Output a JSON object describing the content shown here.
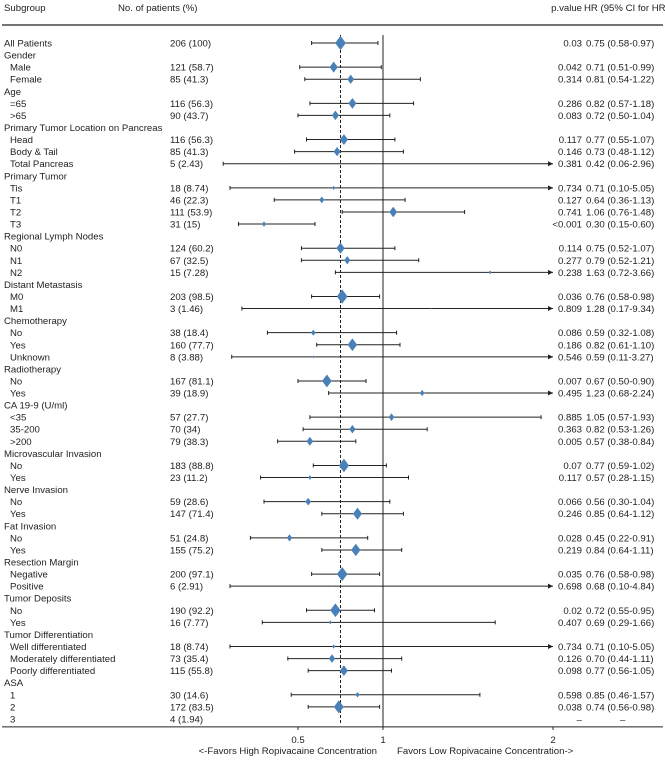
{
  "chart_data": {
    "type": "forest",
    "headers": {
      "subgroup": "Subgroup",
      "patients": "No. of patients (%)",
      "pvalue": "p.value",
      "hr": "HR (95% CI for HR)"
    },
    "x_axis": {
      "ticks": [
        0.5,
        1,
        2
      ],
      "tick_labels": [
        "0.5",
        "1",
        "2"
      ],
      "range": [
        0,
        2
      ],
      "reference_line": 1,
      "overall_line": 0.75,
      "left_label": "<-Favors High Ropivacaine Concentration",
      "right_label": "Favors Low Ropivacaine Concentration->"
    },
    "colors": {
      "marker": "#4a80b8",
      "line": "#222222"
    },
    "rows": [
      {
        "label": "All Patients",
        "group": true,
        "n": "206 (100)",
        "p": "0.03",
        "hr_text": "0.75 (0.58-0.97)",
        "hr": 0.75,
        "lo": 0.58,
        "hi": 0.97,
        "count": 206
      },
      {
        "label": "Gender",
        "group": true
      },
      {
        "label": "Male",
        "n": "121 (58.7)",
        "p": "0.042",
        "hr_text": "0.71 (0.51-0.99)",
        "hr": 0.71,
        "lo": 0.51,
        "hi": 0.99,
        "count": 121
      },
      {
        "label": "Female",
        "n": "85 (41.3)",
        "p": "0.314",
        "hr_text": "0.81 (0.54-1.22)",
        "hr": 0.81,
        "lo": 0.54,
        "hi": 1.22,
        "count": 85
      },
      {
        "label": "Age",
        "group": true
      },
      {
        "label": "=65",
        "n": "116 (56.3)",
        "p": "0.286",
        "hr_text": "0.82 (0.57-1.18)",
        "hr": 0.82,
        "lo": 0.57,
        "hi": 1.18,
        "count": 116
      },
      {
        "label": ">65",
        "n": "90 (43.7)",
        "p": "0.083",
        "hr_text": "0.72 (0.50-1.04)",
        "hr": 0.72,
        "lo": 0.5,
        "hi": 1.04,
        "count": 90
      },
      {
        "label": "Primary Tumor Location on Pancreas",
        "group": true
      },
      {
        "label": "Head",
        "n": "116 (56.3)",
        "p": "0.117",
        "hr_text": "0.77 (0.55-1.07)",
        "hr": 0.77,
        "lo": 0.55,
        "hi": 1.07,
        "count": 116
      },
      {
        "label": "Body & Tail",
        "n": "85 (41.3)",
        "p": "0.146",
        "hr_text": "0.73 (0.48-1.12)",
        "hr": 0.73,
        "lo": 0.48,
        "hi": 1.12,
        "count": 85
      },
      {
        "label": "Total Pancreas",
        "n": "5 (2.43)",
        "p": "0.381",
        "hr_text": "0.42 (0.06-2.96)",
        "hr": 0.42,
        "lo": 0.06,
        "hi": 2.96,
        "count": 5
      },
      {
        "label": "Primary Tumor",
        "group": true
      },
      {
        "label": "Tis",
        "n": "18 (8.74)",
        "p": "0.734",
        "hr_text": "0.71 (0.10-5.05)",
        "hr": 0.71,
        "lo": 0.1,
        "hi": 5.05,
        "count": 18
      },
      {
        "label": "T1",
        "n": "46 (22.3)",
        "p": "0.127",
        "hr_text": "0.64 (0.36-1.13)",
        "hr": 0.64,
        "lo": 0.36,
        "hi": 1.13,
        "count": 46
      },
      {
        "label": "T2",
        "n": "111 (53.9)",
        "p": "0.741",
        "hr_text": "1.06 (0.76-1.48)",
        "hr": 1.06,
        "lo": 0.76,
        "hi": 1.48,
        "count": 111
      },
      {
        "label": "T3",
        "n": "31 (15)",
        "p": "<0.001",
        "hr_text": "0.30 (0.15-0.60)",
        "hr": 0.3,
        "lo": 0.15,
        "hi": 0.6,
        "count": 31
      },
      {
        "label": "Regional Lymph Nodes",
        "group": true
      },
      {
        "label": "N0",
        "n": "124 (60.2)",
        "p": "0.114",
        "hr_text": "0.75 (0.52-1.07)",
        "hr": 0.75,
        "lo": 0.52,
        "hi": 1.07,
        "count": 124
      },
      {
        "label": "N1",
        "n": "67 (32.5)",
        "p": "0.277",
        "hr_text": "0.79 (0.52-1.21)",
        "hr": 0.79,
        "lo": 0.52,
        "hi": 1.21,
        "count": 67
      },
      {
        "label": "N2",
        "n": "15 (7.28)",
        "p": "0.238",
        "hr_text": "1.63 (0.72-3.66)",
        "hr": 1.63,
        "lo": 0.72,
        "hi": 3.66,
        "count": 15
      },
      {
        "label": "Distant Metastasis",
        "group": true
      },
      {
        "label": "M0",
        "n": "203 (98.5)",
        "p": "0.036",
        "hr_text": "0.76 (0.58-0.98)",
        "hr": 0.76,
        "lo": 0.58,
        "hi": 0.98,
        "count": 203
      },
      {
        "label": "M1",
        "n": "3 (1.46)",
        "p": "0.809",
        "hr_text": "1.28 (0.17-9.34)",
        "hr": 1.28,
        "lo": 0.17,
        "hi": 9.34,
        "count": 3
      },
      {
        "label": "Chemotherapy",
        "group": true
      },
      {
        "label": "No",
        "n": "38 (18.4)",
        "p": "0.086",
        "hr_text": "0.59 (0.32-1.08)",
        "hr": 0.59,
        "lo": 0.32,
        "hi": 1.08,
        "count": 38
      },
      {
        "label": "Yes",
        "n": "160 (77.7)",
        "p": "0.186",
        "hr_text": "0.82 (0.61-1.10)",
        "hr": 0.82,
        "lo": 0.61,
        "hi": 1.1,
        "count": 160
      },
      {
        "label": "Unknown",
        "n": "8 (3.88)",
        "p": "0.546",
        "hr_text": "0.59 (0.11-3.27)",
        "hr": 0.59,
        "lo": 0.11,
        "hi": 3.27,
        "count": 8
      },
      {
        "label": "Radiotherapy",
        "group": true
      },
      {
        "label": "No",
        "n": "167 (81.1)",
        "p": "0.007",
        "hr_text": "0.67 (0.50-0.90)",
        "hr": 0.67,
        "lo": 0.5,
        "hi": 0.9,
        "count": 167
      },
      {
        "label": "Yes",
        "n": "39 (18.9)",
        "p": "0.495",
        "hr_text": "1.23 (0.68-2.24)",
        "hr": 1.23,
        "lo": 0.68,
        "hi": 2.24,
        "count": 39
      },
      {
        "label": "CA 19-9 (U/ml)",
        "group": true
      },
      {
        "label": "<35",
        "n": "57 (27.7)",
        "p": "0.885",
        "hr_text": "1.05 (0.57-1.93)",
        "hr": 1.05,
        "lo": 0.57,
        "hi": 1.93,
        "count": 57
      },
      {
        "label": "35-200",
        "n": "70 (34)",
        "p": "0.363",
        "hr_text": "0.82 (0.53-1.26)",
        "hr": 0.82,
        "lo": 0.53,
        "hi": 1.26,
        "count": 70
      },
      {
        "label": ">200",
        "n": "79 (38.3)",
        "p": "0.005",
        "hr_text": "0.57 (0.38-0.84)",
        "hr": 0.57,
        "lo": 0.38,
        "hi": 0.84,
        "count": 79
      },
      {
        "label": "Microvascular Invasion",
        "group": true
      },
      {
        "label": "No",
        "n": "183 (88.8)",
        "p": "0.07",
        "hr_text": "0.77 (0.59-1.02)",
        "hr": 0.77,
        "lo": 0.59,
        "hi": 1.02,
        "count": 183
      },
      {
        "label": "Yes",
        "n": "23 (11.2)",
        "p": "0.117",
        "hr_text": "0.57 (0.28-1.15)",
        "hr": 0.57,
        "lo": 0.28,
        "hi": 1.15,
        "count": 23
      },
      {
        "label": "Nerve Invasion",
        "group": true
      },
      {
        "label": "No",
        "n": "59 (28.6)",
        "p": "0.066",
        "hr_text": "0.56 (0.30-1.04)",
        "hr": 0.56,
        "lo": 0.3,
        "hi": 1.04,
        "count": 59
      },
      {
        "label": "Yes",
        "n": "147 (71.4)",
        "p": "0.246",
        "hr_text": "0.85 (0.64-1.12)",
        "hr": 0.85,
        "lo": 0.64,
        "hi": 1.12,
        "count": 147
      },
      {
        "label": "Fat Invasion",
        "group": true
      },
      {
        "label": "No",
        "n": "51 (24.8)",
        "p": "0.028",
        "hr_text": "0.45 (0.22-0.91)",
        "hr": 0.45,
        "lo": 0.22,
        "hi": 0.91,
        "count": 51
      },
      {
        "label": "Yes",
        "n": "155 (75.2)",
        "p": "0.219",
        "hr_text": "0.84 (0.64-1.11)",
        "hr": 0.84,
        "lo": 0.64,
        "hi": 1.11,
        "count": 155
      },
      {
        "label": "Resection Margin",
        "group": true
      },
      {
        "label": "Negative",
        "n": "200 (97.1)",
        "p": "0.035",
        "hr_text": "0.76 (0.58-0.98)",
        "hr": 0.76,
        "lo": 0.58,
        "hi": 0.98,
        "count": 200
      },
      {
        "label": "Positive",
        "n": "6 (2.91)",
        "p": "0.698",
        "hr_text": "0.68 (0.10-4.84)",
        "hr": 0.68,
        "lo": 0.1,
        "hi": 4.84,
        "count": 6
      },
      {
        "label": "Tumor Deposits",
        "group": true
      },
      {
        "label": "No",
        "n": "190 (92.2)",
        "p": "0.02",
        "hr_text": "0.72 (0.55-0.95)",
        "hr": 0.72,
        "lo": 0.55,
        "hi": 0.95,
        "count": 190
      },
      {
        "label": "Yes",
        "n": "16 (7.77)",
        "p": "0.407",
        "hr_text": "0.69 (0.29-1.66)",
        "hr": 0.69,
        "lo": 0.29,
        "hi": 1.66,
        "count": 16
      },
      {
        "label": "Tumor Differentiation",
        "group": true
      },
      {
        "label": "Well differentiated",
        "n": "18 (8.74)",
        "p": "0.734",
        "hr_text": "0.71 (0.10-5.05)",
        "hr": 0.71,
        "lo": 0.1,
        "hi": 5.05,
        "count": 18
      },
      {
        "label": "Moderately differentiated",
        "n": "73 (35.4)",
        "p": "0.126",
        "hr_text": "0.70 (0.44-1.11)",
        "hr": 0.7,
        "lo": 0.44,
        "hi": 1.11,
        "count": 73
      },
      {
        "label": "Poorly differentiated",
        "n": "115 (55.8)",
        "p": "0.098",
        "hr_text": "0.77 (0.56-1.05)",
        "hr": 0.77,
        "lo": 0.56,
        "hi": 1.05,
        "count": 115
      },
      {
        "label": "ASA",
        "group": true
      },
      {
        "label": "1",
        "n": "30 (14.6)",
        "p": "0.598",
        "hr_text": "0.85 (0.46-1.57)",
        "hr": 0.85,
        "lo": 0.46,
        "hi": 1.57,
        "count": 30
      },
      {
        "label": "2",
        "n": "172 (83.5)",
        "p": "0.038",
        "hr_text": "0.74 (0.56-0.98)",
        "hr": 0.74,
        "lo": 0.56,
        "hi": 0.98,
        "count": 172
      },
      {
        "label": "3",
        "n": "4 (1.94)",
        "p": "–",
        "hr_text": "–"
      }
    ]
  }
}
